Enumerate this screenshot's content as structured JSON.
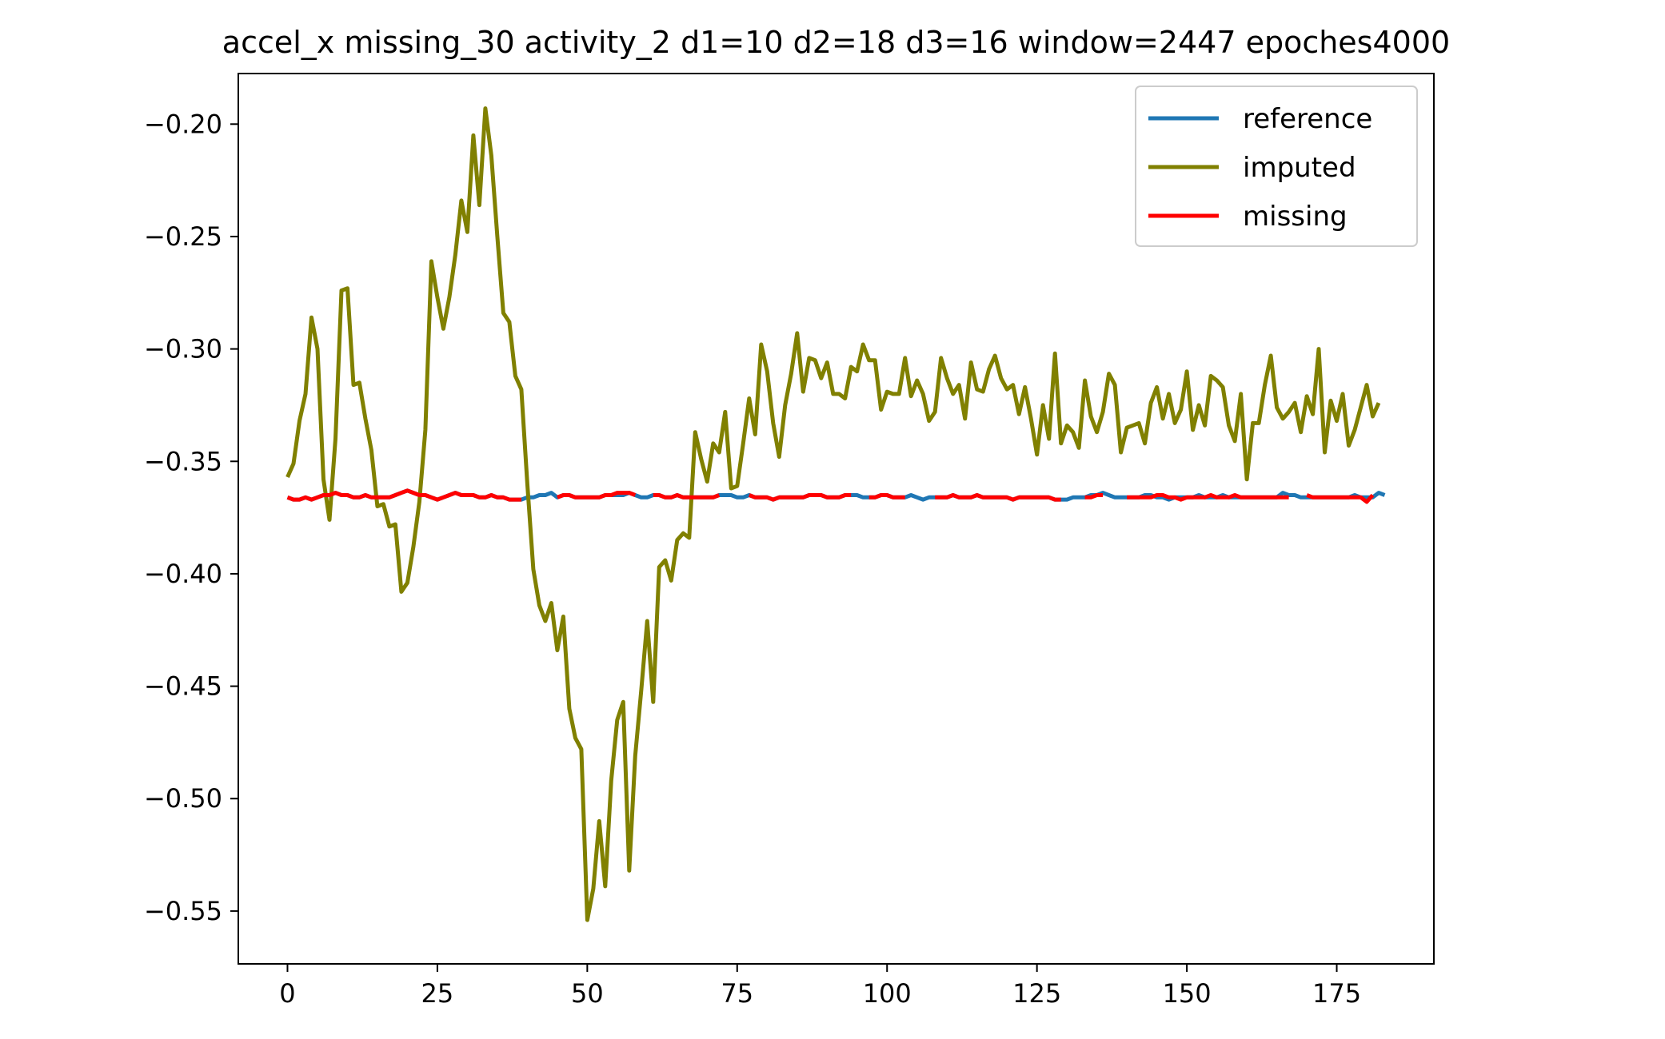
{
  "chart_data": {
    "type": "line",
    "title": "accel_x missing_30 activity_2 d1=10 d2=18 d3=16 window=2447 epoches4000",
    "xlabel": "",
    "ylabel": "",
    "xlim": [
      -8.2,
      191.2
    ],
    "ylim": [
      -0.5735,
      -0.1775
    ],
    "x_ticks": [
      0,
      25,
      50,
      75,
      100,
      125,
      150,
      175
    ],
    "x_tick_labels": [
      "0",
      "25",
      "50",
      "75",
      "100",
      "125",
      "150",
      "175"
    ],
    "y_ticks": [
      -0.2,
      -0.25,
      -0.3,
      -0.35,
      -0.4,
      -0.45,
      -0.5,
      -0.55
    ],
    "y_tick_labels": [
      "−0.20",
      "−0.25",
      "−0.30",
      "−0.35",
      "−0.40",
      "−0.45",
      "−0.50",
      "−0.55"
    ],
    "grid": false,
    "legend_position": "top-right",
    "series": [
      {
        "name": "reference",
        "color": "#1f77b4",
        "x_start": 0,
        "values": [
          -0.366,
          -0.367,
          -0.367,
          -0.366,
          -0.367,
          -0.366,
          -0.365,
          -0.365,
          -0.364,
          -0.365,
          -0.365,
          -0.366,
          -0.366,
          -0.365,
          -0.366,
          -0.366,
          -0.366,
          -0.366,
          -0.365,
          -0.364,
          -0.363,
          -0.364,
          -0.365,
          -0.365,
          -0.366,
          -0.367,
          -0.366,
          -0.365,
          -0.364,
          -0.365,
          -0.365,
          -0.365,
          -0.366,
          -0.366,
          -0.365,
          -0.366,
          -0.366,
          -0.367,
          -0.367,
          -0.367,
          -0.366,
          -0.366,
          -0.365,
          -0.365,
          -0.364,
          -0.366,
          -0.365,
          -0.365,
          -0.366,
          -0.366,
          -0.366,
          -0.366,
          -0.366,
          -0.365,
          -0.365,
          -0.365,
          -0.365,
          -0.364,
          -0.365,
          -0.366,
          -0.366,
          -0.365,
          -0.365,
          -0.366,
          -0.366,
          -0.365,
          -0.366,
          -0.366,
          -0.366,
          -0.366,
          -0.366,
          -0.366,
          -0.365,
          -0.365,
          -0.365,
          -0.366,
          -0.366,
          -0.365,
          -0.366,
          -0.366,
          -0.366,
          -0.367,
          -0.366,
          -0.366,
          -0.366,
          -0.366,
          -0.366,
          -0.365,
          -0.365,
          -0.365,
          -0.366,
          -0.366,
          -0.366,
          -0.365,
          -0.365,
          -0.365,
          -0.366,
          -0.366,
          -0.366,
          -0.365,
          -0.365,
          -0.366,
          -0.366,
          -0.366,
          -0.365,
          -0.366,
          -0.367,
          -0.366,
          -0.366,
          -0.366,
          -0.366,
          -0.365,
          -0.366,
          -0.366,
          -0.366,
          -0.365,
          -0.366,
          -0.366,
          -0.366,
          -0.366,
          -0.366,
          -0.367,
          -0.366,
          -0.366,
          -0.366,
          -0.366,
          -0.366,
          -0.366,
          -0.367,
          -0.367,
          -0.367,
          -0.366,
          -0.366,
          -0.366,
          -0.365,
          -0.365,
          -0.364,
          -0.365,
          -0.366,
          -0.366,
          -0.366,
          -0.366,
          -0.366,
          -0.365,
          -0.365,
          -0.366,
          -0.366,
          -0.367,
          -0.366,
          -0.366,
          -0.366,
          -0.366,
          -0.365,
          -0.366,
          -0.366,
          -0.366,
          -0.365,
          -0.366,
          -0.366,
          -0.366,
          -0.366,
          -0.366,
          -0.366,
          -0.366,
          -0.366,
          -0.366,
          -0.364,
          -0.365,
          -0.365,
          -0.366,
          -0.366,
          -0.366,
          -0.366,
          -0.366,
          -0.366,
          -0.366,
          -0.366,
          -0.366,
          -0.365,
          -0.366,
          -0.366,
          -0.366,
          -0.364,
          -0.365
        ]
      },
      {
        "name": "imputed",
        "color": "#808000",
        "x_start": 0,
        "values": [
          -0.357,
          -0.351,
          -0.332,
          -0.32,
          -0.286,
          -0.3,
          -0.358,
          -0.376,
          -0.34,
          -0.274,
          -0.273,
          -0.316,
          -0.315,
          -0.331,
          -0.345,
          -0.37,
          -0.369,
          -0.379,
          -0.378,
          -0.408,
          -0.404,
          -0.388,
          -0.368,
          -0.336,
          -0.261,
          -0.277,
          -0.291,
          -0.277,
          -0.258,
          -0.234,
          -0.248,
          -0.205,
          -0.236,
          -0.193,
          -0.214,
          -0.25,
          -0.284,
          -0.288,
          -0.312,
          -0.318,
          -0.36,
          -0.398,
          -0.414,
          -0.421,
          -0.413,
          -0.434,
          -0.419,
          -0.46,
          -0.473,
          -0.478,
          -0.554,
          -0.54,
          -0.51,
          -0.539,
          -0.492,
          -0.465,
          -0.457,
          -0.532,
          -0.481,
          -0.452,
          -0.421,
          -0.457,
          -0.397,
          -0.394,
          -0.403,
          -0.385,
          -0.382,
          -0.384,
          -0.337,
          -0.349,
          -0.359,
          -0.342,
          -0.346,
          -0.328,
          -0.362,
          -0.361,
          -0.342,
          -0.322,
          -0.338,
          -0.298,
          -0.31,
          -0.333,
          -0.348,
          -0.325,
          -0.311,
          -0.293,
          -0.319,
          -0.304,
          -0.305,
          -0.313,
          -0.306,
          -0.32,
          -0.32,
          -0.322,
          -0.308,
          -0.31,
          -0.298,
          -0.305,
          -0.305,
          -0.327,
          -0.319,
          -0.32,
          -0.32,
          -0.304,
          -0.321,
          -0.314,
          -0.32,
          -0.332,
          -0.328,
          -0.304,
          -0.313,
          -0.32,
          -0.316,
          -0.331,
          -0.306,
          -0.318,
          -0.319,
          -0.309,
          -0.303,
          -0.313,
          -0.318,
          -0.316,
          -0.329,
          -0.317,
          -0.331,
          -0.347,
          -0.325,
          -0.34,
          -0.302,
          -0.342,
          -0.334,
          -0.337,
          -0.344,
          -0.314,
          -0.33,
          -0.337,
          -0.328,
          -0.311,
          -0.316,
          -0.346,
          -0.335,
          -0.334,
          -0.333,
          -0.342,
          -0.324,
          -0.317,
          -0.331,
          -0.32,
          -0.333,
          -0.327,
          -0.31,
          -0.336,
          -0.325,
          -0.334,
          -0.312,
          -0.314,
          -0.317,
          -0.334,
          -0.341,
          -0.32,
          -0.358,
          -0.333,
          -0.333,
          -0.316,
          -0.303,
          -0.326,
          -0.331,
          -0.328,
          -0.324,
          -0.337,
          -0.321,
          -0.329,
          -0.3,
          -0.346,
          -0.323,
          -0.332,
          -0.32,
          -0.343,
          -0.336,
          -0.326,
          -0.316,
          -0.33,
          -0.324
        ]
      },
      {
        "name": "missing",
        "color": "#ff0000",
        "x_start": 0,
        "values": [
          -0.366,
          -0.367,
          -0.367,
          -0.366,
          -0.367,
          -0.366,
          -0.365,
          -0.365,
          -0.364,
          -0.365,
          -0.365,
          -0.366,
          -0.366,
          -0.365,
          -0.366,
          -0.366,
          -0.366,
          -0.366,
          -0.365,
          -0.364,
          -0.363,
          -0.364,
          -0.365,
          -0.365,
          -0.366,
          -0.367,
          -0.366,
          -0.365,
          -0.364,
          -0.365,
          -0.365,
          -0.365,
          -0.366,
          -0.366,
          -0.365,
          -0.366,
          -0.366,
          -0.367,
          -0.367,
          -0.367,
          null,
          null,
          null,
          null,
          null,
          -0.366,
          -0.365,
          -0.365,
          -0.366,
          -0.366,
          -0.366,
          -0.366,
          -0.366,
          -0.365,
          -0.365,
          -0.364,
          -0.364,
          -0.364,
          -0.365,
          null,
          null,
          -0.365,
          -0.365,
          -0.366,
          -0.366,
          -0.365,
          -0.366,
          -0.366,
          -0.366,
          -0.366,
          -0.366,
          -0.366,
          -0.365,
          null,
          null,
          null,
          null,
          -0.365,
          -0.366,
          -0.366,
          -0.366,
          -0.367,
          -0.366,
          -0.366,
          -0.366,
          -0.366,
          -0.366,
          -0.365,
          -0.365,
          -0.365,
          -0.366,
          -0.366,
          -0.366,
          -0.365,
          -0.365,
          null,
          null,
          -0.366,
          -0.366,
          -0.365,
          -0.365,
          -0.366,
          -0.366,
          -0.366,
          null,
          null,
          null,
          null,
          -0.366,
          -0.366,
          -0.366,
          -0.365,
          -0.366,
          -0.366,
          -0.366,
          -0.365,
          -0.366,
          -0.366,
          -0.366,
          -0.366,
          -0.366,
          -0.367,
          -0.366,
          -0.366,
          -0.366,
          -0.366,
          -0.366,
          -0.366,
          -0.367,
          -0.367,
          null,
          null,
          null,
          -0.366,
          -0.366,
          -0.365,
          -0.365,
          null,
          null,
          null,
          -0.366,
          -0.366,
          -0.366,
          -0.366,
          -0.366,
          -0.365,
          -0.365,
          -0.366,
          -0.366,
          -0.367,
          -0.366,
          -0.366,
          -0.366,
          -0.366,
          -0.365,
          -0.366,
          -0.366,
          -0.366,
          -0.365,
          -0.366,
          -0.366,
          -0.366,
          -0.366,
          -0.366,
          -0.366,
          -0.366,
          -0.366,
          -0.366,
          null,
          null,
          -0.365,
          -0.366,
          -0.366,
          -0.366,
          -0.366,
          -0.366,
          -0.366,
          -0.366,
          -0.366,
          -0.366,
          -0.368,
          -0.365,
          null,
          null,
          null,
          null,
          null
        ]
      }
    ]
  }
}
